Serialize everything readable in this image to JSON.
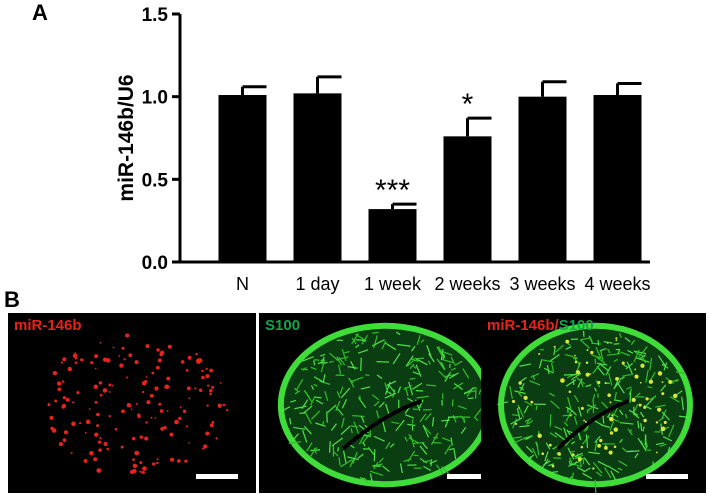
{
  "panels": {
    "a_letter": "A",
    "b_letter": "B"
  },
  "chart_data": {
    "type": "bar",
    "categories": [
      "N",
      "1 day",
      "1 week",
      "2 weeks",
      "3 weeks",
      "4 weeks"
    ],
    "values": [
      1.01,
      1.02,
      0.32,
      0.76,
      1.0,
      1.01
    ],
    "errors": [
      0.05,
      0.1,
      0.03,
      0.11,
      0.09,
      0.07
    ],
    "significance": [
      "",
      "",
      "***",
      "*",
      "",
      ""
    ],
    "ylabel": "miR-146b/U6",
    "xlabel": "",
    "ylim": [
      0,
      1.5
    ],
    "yticks": [
      "0.0",
      "0.5",
      "1.0",
      "1.5"
    ],
    "bar_color": "#000000",
    "grid": false
  },
  "micrographs": [
    {
      "label": "miR-146b",
      "label_color": "#e8231b",
      "stain": "red"
    },
    {
      "label": "S100",
      "label_color": "#16a34a",
      "stain": "green"
    },
    {
      "label_red": "miR-146b",
      "label_sep": "/",
      "label_green": "S100",
      "label_color_red": "#e8231b",
      "label_color_green": "#16a34a",
      "stain": "merge"
    }
  ]
}
